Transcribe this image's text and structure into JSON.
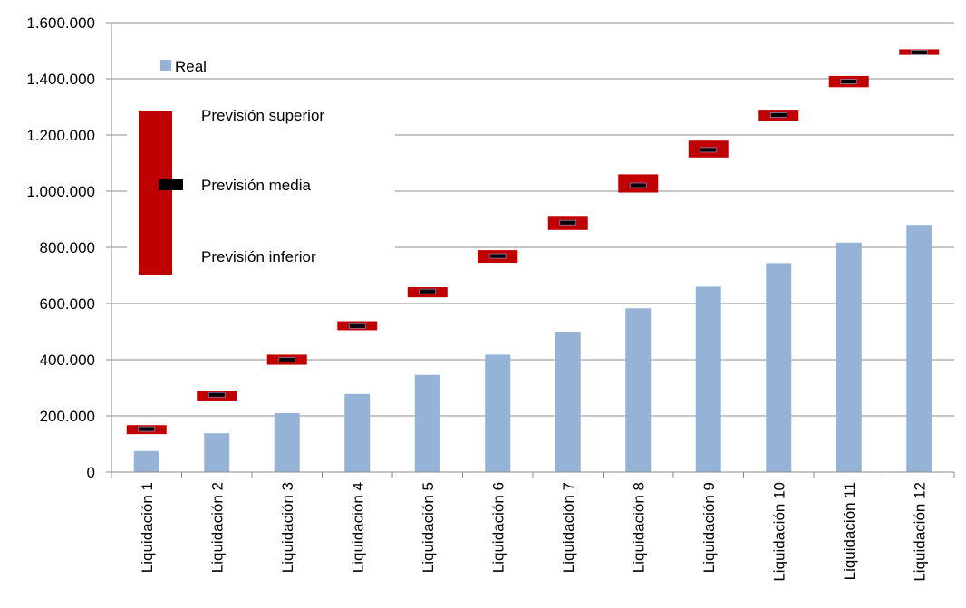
{
  "chart_data": {
    "type": "bar",
    "categories": [
      "Liquidación 1",
      "Liquidación 2",
      "Liquidación 3",
      "Liquidación 4",
      "Liquidación 5",
      "Liquidación 6",
      "Liquidación 7",
      "Liquidación 8",
      "Liquidación 9",
      "Liquidación 10",
      "Liquidación 11",
      "Liquidación 12"
    ],
    "series": [
      {
        "name": "Real",
        "values": [
          75000,
          138000,
          210000,
          278000,
          346000,
          418000,
          500000,
          583000,
          660000,
          744000,
          817000,
          880000
        ]
      },
      {
        "name": "Previsión superior",
        "values": [
          167000,
          290000,
          418000,
          537000,
          658000,
          790000,
          912000,
          1060000,
          1180000,
          1290000,
          1410000,
          1505000
        ]
      },
      {
        "name": "Previsión media",
        "values": [
          153000,
          275000,
          400000,
          520000,
          643000,
          769000,
          888000,
          1021000,
          1147000,
          1271000,
          1390000,
          1494000
        ]
      },
      {
        "name": "Previsión inferior",
        "values": [
          135000,
          255000,
          382000,
          505000,
          622000,
          745000,
          862000,
          995000,
          1120000,
          1250000,
          1370000,
          1485000
        ]
      }
    ],
    "ylim": [
      0,
      1600000
    ],
    "y_ticks": [
      "0",
      "200.000",
      "400.000",
      "600.000",
      "800.000",
      "1.000.000",
      "1.200.000",
      "1.400.000",
      "1.600.000"
    ],
    "grid": true,
    "colors": {
      "real": "#95B3D7",
      "range": "#C00000",
      "mean": "#000000"
    },
    "legend": {
      "real_label": "Real",
      "upper_label": "Previsión  superior",
      "mean_label": "Previsión  media",
      "lower_label": "Previsión  inferior"
    }
  }
}
